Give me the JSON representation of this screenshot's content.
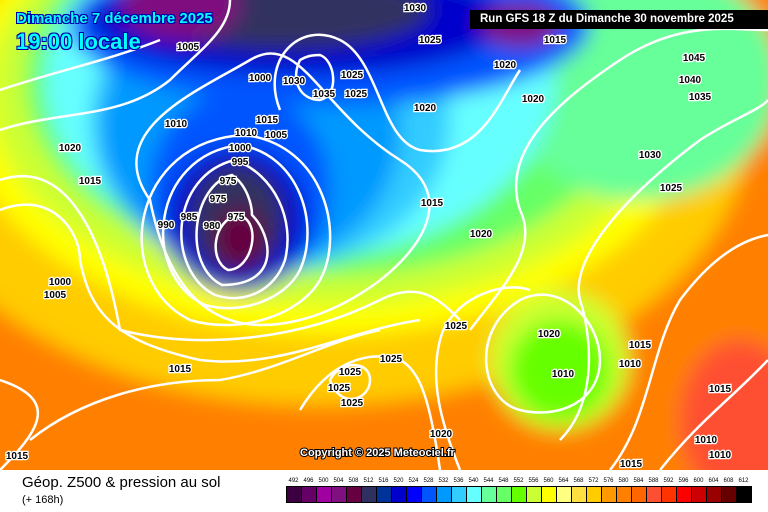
{
  "header": {
    "date": "Dimanche 7 décembre 2025",
    "time": "19:00 locale",
    "run": "Run GFS 18 Z du Dimanche 30 novembre 2025"
  },
  "map": {
    "copyright": "Copyright © 2025 Meteociel.fr",
    "pressure_labels": [
      "1005",
      "1030",
      "1025",
      "1015",
      "1020",
      "1020",
      "1045",
      "1040",
      "1035",
      "1030",
      "1025",
      "1000",
      "1030",
      "1035",
      "1025",
      "1025",
      "1020",
      "1010",
      "1015",
      "1010",
      "1005",
      "1000",
      "995",
      "1020",
      "1015",
      "975",
      "975",
      "990",
      "985",
      "980",
      "975",
      "1000",
      "1005",
      "1015",
      "1020",
      "1025",
      "1020",
      "1015",
      "1025",
      "1010",
      "1015",
      "1025",
      "1010",
      "1025",
      "1025",
      "1015",
      "1020",
      "1010",
      "1010",
      "1015",
      "1015"
    ],
    "low_center_color": "#660040"
  },
  "footer": {
    "title": "Géop. Z500 & pression au sol",
    "lead": "(+ 168h)"
  },
  "legend": {
    "labels": [
      "492",
      "496",
      "500",
      "504",
      "508",
      "512",
      "516",
      "520",
      "524",
      "528",
      "532",
      "536",
      "540",
      "544",
      "548",
      "552",
      "556",
      "560",
      "564",
      "568",
      "572",
      "576",
      "580",
      "584",
      "588",
      "592",
      "596",
      "600",
      "604",
      "608",
      "612"
    ],
    "colors": [
      "#3c0040",
      "#660066",
      "#a000a0",
      "#801080",
      "#660040",
      "#303060",
      "#003399",
      "#0000cc",
      "#0000ff",
      "#0055ff",
      "#0099ff",
      "#33ccff",
      "#66ffff",
      "#66ff99",
      "#66ff66",
      "#66ff00",
      "#ccff33",
      "#ffff00",
      "#ffff80",
      "#ffe040",
      "#ffcc00",
      "#ff9900",
      "#ff8000",
      "#ff6600",
      "#ff4f33",
      "#ff3300",
      "#ff0000",
      "#cc0000",
      "#990000",
      "#660000",
      "#000000"
    ]
  }
}
